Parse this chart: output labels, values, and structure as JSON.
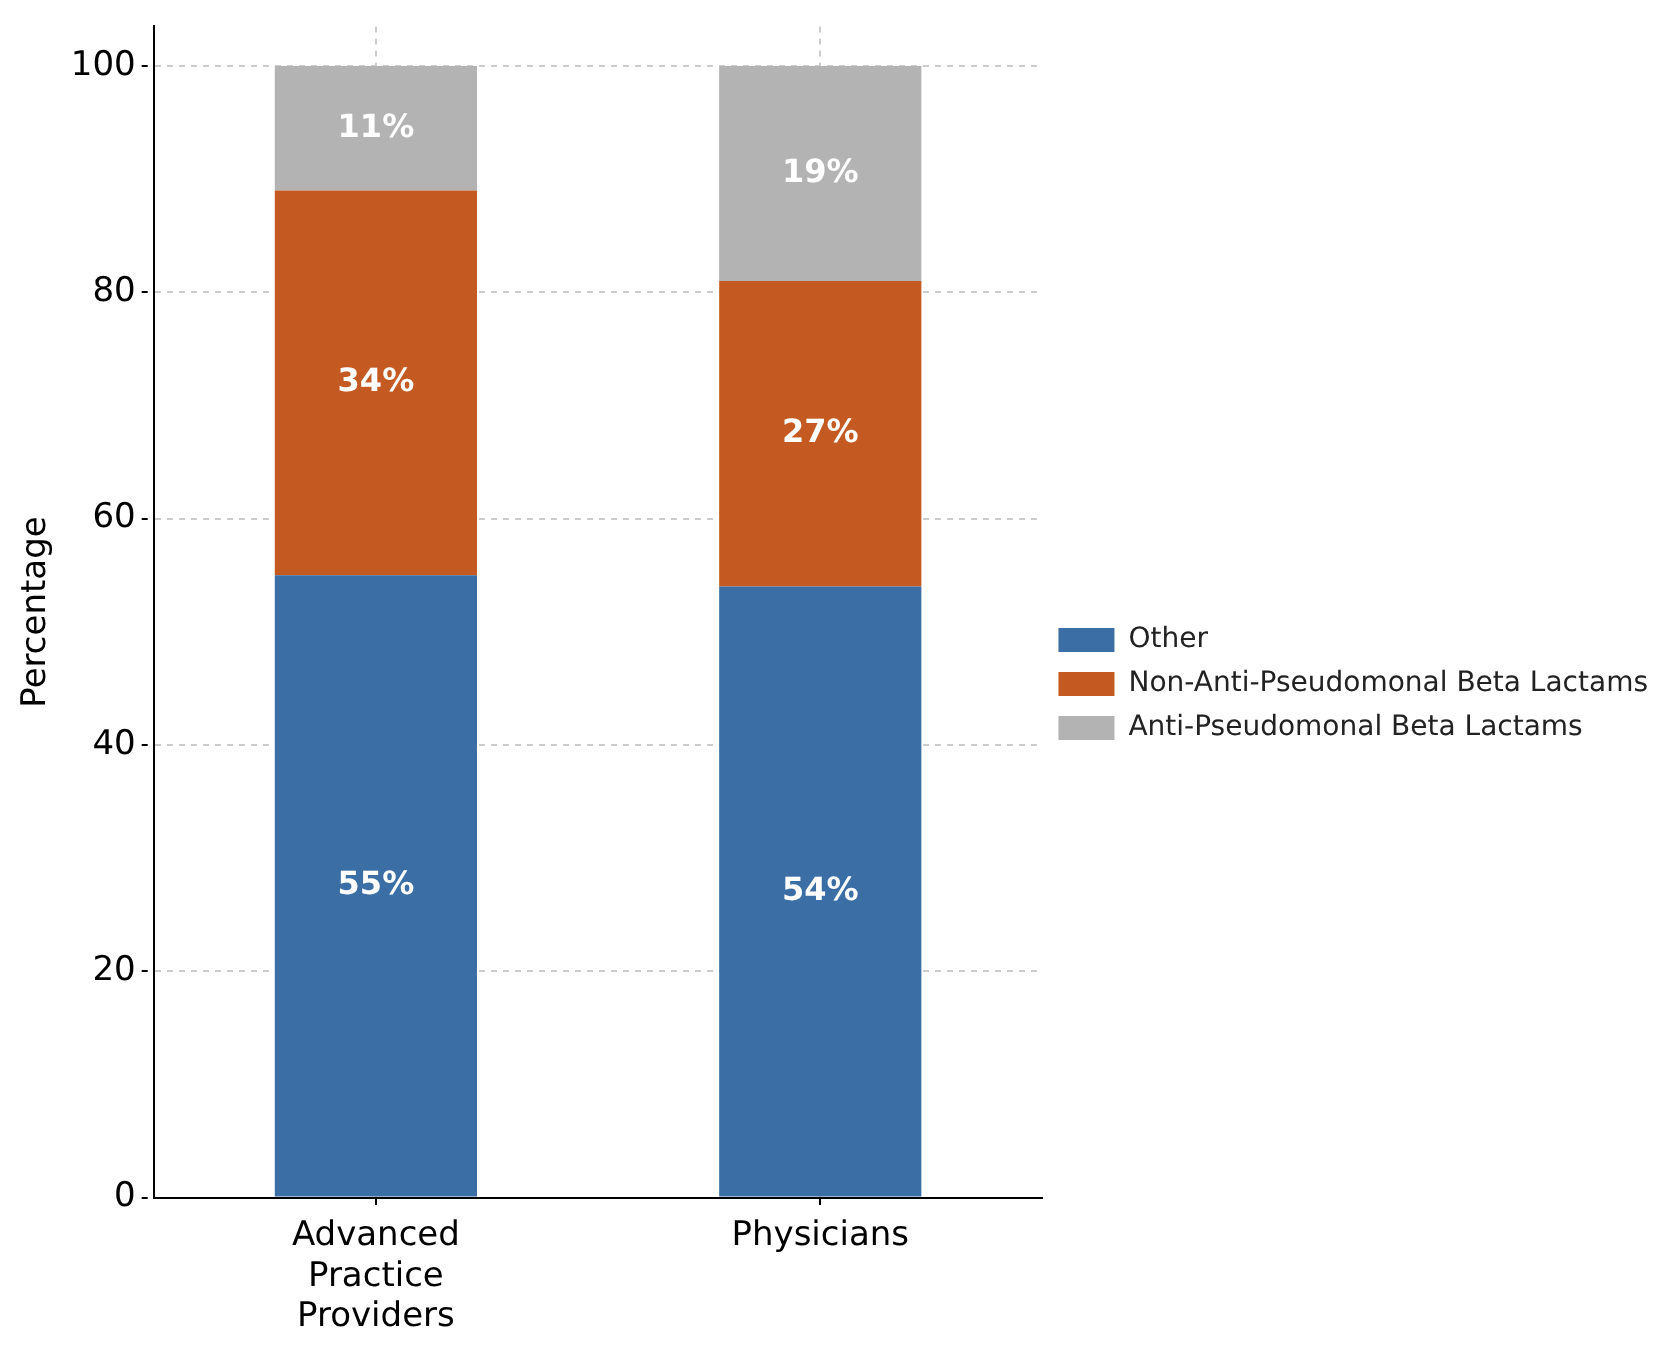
{
  "chart_data": {
    "type": "bar",
    "stacked": true,
    "ylabel": "Percentage",
    "categories": [
      "Advanced Practice Providers",
      "Physicians"
    ],
    "series": [
      {
        "name": "Other",
        "color": "#3a6ea5",
        "values": [
          55,
          54
        ],
        "value_labels": [
          "55%",
          "54%"
        ]
      },
      {
        "name": "Non-Anti-Pseudomonal Beta Lactams",
        "color": "#c45a22",
        "values": [
          34,
          27
        ],
        "value_labels": [
          "34%",
          "27%"
        ]
      },
      {
        "name": "Anti-Pseudomonal Beta Lactams",
        "color": "#b3b3b3",
        "values": [
          11,
          19
        ],
        "value_labels": [
          "11%",
          "19%"
        ]
      }
    ],
    "ylim": [
      0,
      103.5
    ],
    "yticks": [
      0,
      20,
      40,
      60,
      80,
      100
    ],
    "grid": true,
    "legend": "right"
  }
}
